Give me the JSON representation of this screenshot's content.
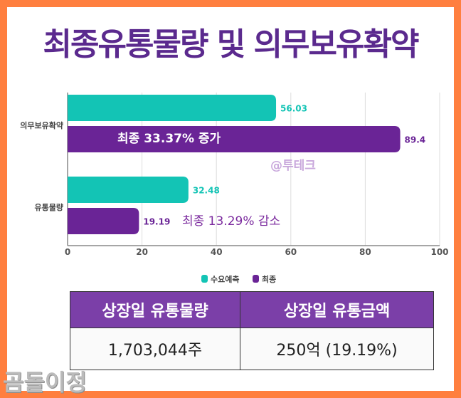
{
  "title": "최종유통물량 및 의무보유확약",
  "chart_data": {
    "type": "bar",
    "orientation": "horizontal",
    "categories": [
      "의무보유확약",
      "유통물량"
    ],
    "series": [
      {
        "name": "수요예측",
        "values": [
          56.03,
          32.48
        ],
        "color": "#13C4B5",
        "labels": [
          "56.03",
          "32.48"
        ]
      },
      {
        "name": "최종",
        "values": [
          89.4,
          19.19
        ],
        "color": "#6A2496",
        "labels": [
          "89.4",
          "19.19"
        ]
      }
    ],
    "xlim": [
      0,
      100
    ],
    "xticks": [
      "0",
      "20",
      "40",
      "60",
      "80",
      "100"
    ],
    "grid": true,
    "legend": "bottom",
    "annotations": [
      "최종 33.37% 증가",
      "최종  13.29% 감소"
    ],
    "watermark": "@투테크"
  },
  "table": {
    "headers": [
      "상장일 유통물량",
      "상장일 유통금액"
    ],
    "row": [
      "1,703,044주",
      "250억 (19.19%)"
    ]
  },
  "signature": "곰돌이정"
}
